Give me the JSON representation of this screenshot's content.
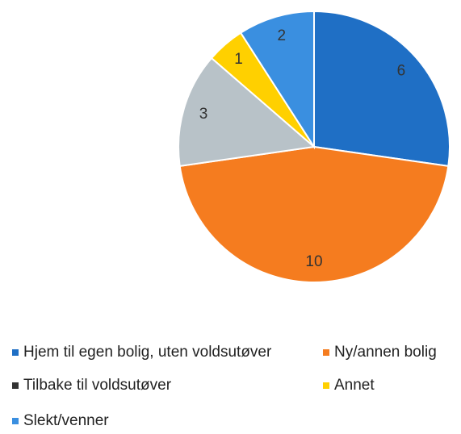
{
  "chart_data": {
    "type": "pie",
    "categories": [
      "Hjem til egen bolig, uten voldsutøver",
      "Ny/annen bolig",
      "Tilbake til voldsutøver",
      "Annet",
      "Slekt/venner"
    ],
    "values": [
      6,
      10,
      3,
      1,
      2
    ],
    "colors": [
      "#1f6fc5",
      "#f57c1f",
      "#b8c2c8",
      "#ffd000",
      "#3a8fe0"
    ],
    "legend_colors": [
      "#1f6fc5",
      "#f57c1f",
      "#333333",
      "#ffd000",
      "#3a8fe0"
    ],
    "legend": "bottom"
  }
}
